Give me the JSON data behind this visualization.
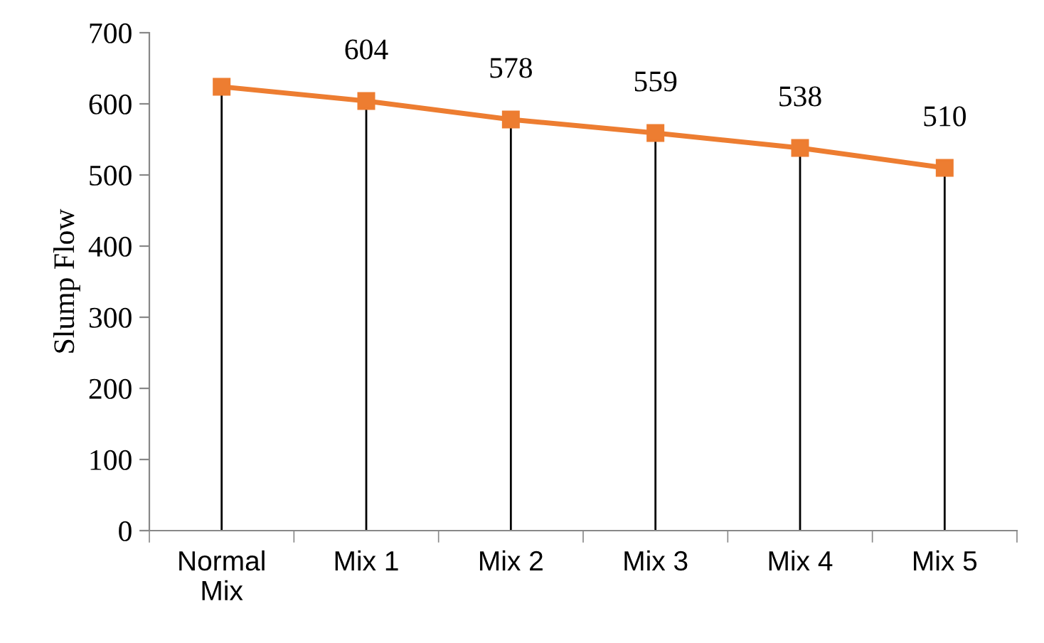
{
  "chart_data": {
    "type": "line",
    "ylabel": "Slump Flow",
    "categories": [
      "Normal\nMix",
      "Mix 1",
      "Mix 2",
      "Mix 3",
      "Mix 4",
      "Mix 5"
    ],
    "series": [
      {
        "color": "#ed7d31",
        "marker": "square",
        "line_style": "solid",
        "values": [
          624,
          604,
          578,
          559,
          538,
          510
        ],
        "value_labels": [
          null,
          "604",
          "578",
          "559",
          "538",
          "510"
        ]
      }
    ],
    "ylim": [
      0,
      700
    ],
    "yticks": [
      0,
      100,
      200,
      300,
      400,
      500,
      600,
      700
    ],
    "grid": "x",
    "legend": false
  }
}
